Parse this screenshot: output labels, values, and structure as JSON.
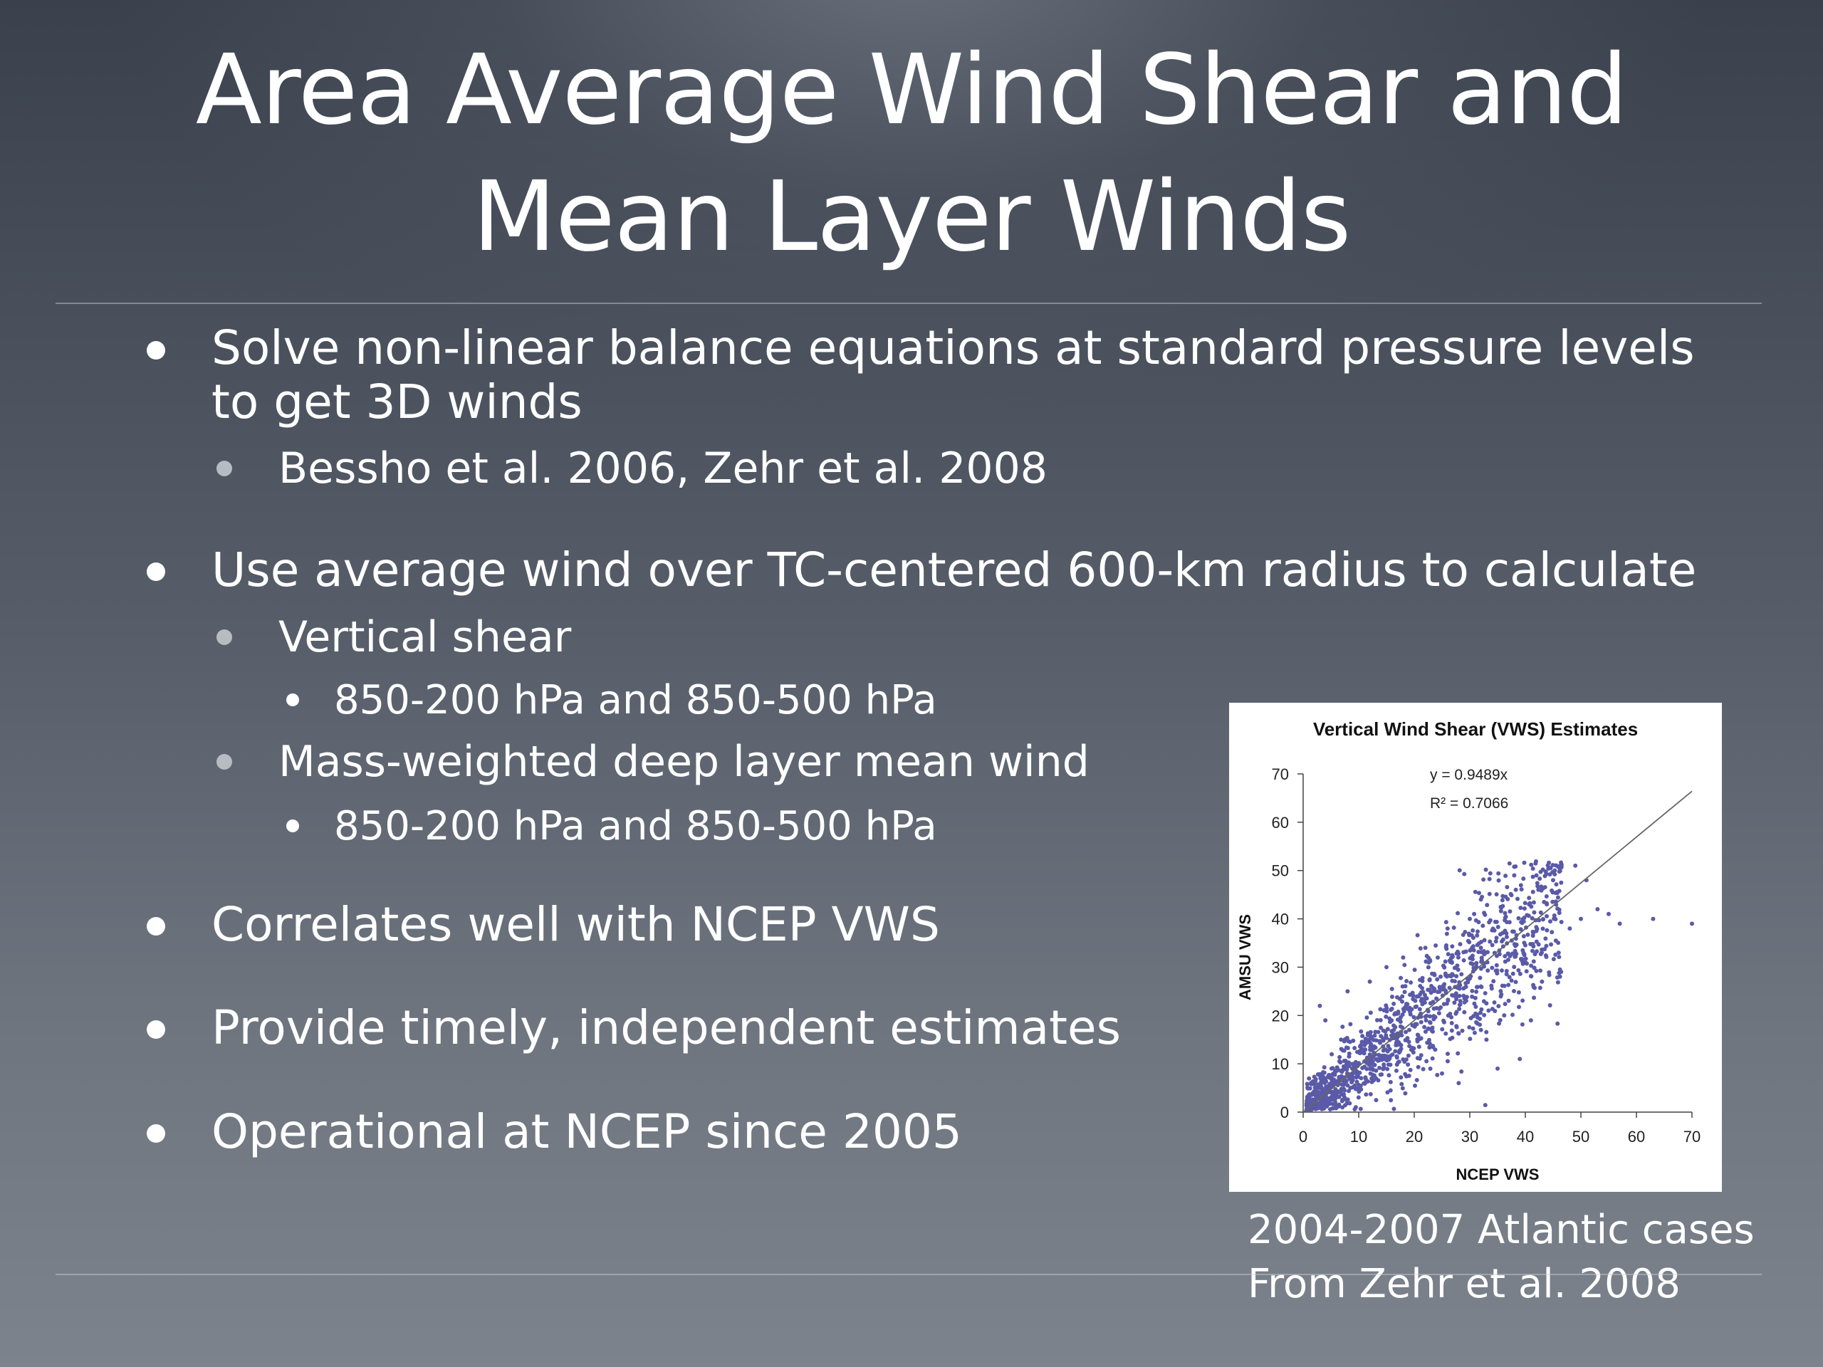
{
  "slide": {
    "title_line1": "Area Average Wind Shear and",
    "title_line2": "Mean Layer Winds",
    "bullets": [
      {
        "text": "Solve non-linear balance equations at standard pressure levels"
      },
      {
        "text": "to get 3D winds"
      },
      {
        "text": "Bessho et al. 2006, Zehr et al. 2008"
      },
      {
        "text": "Use average wind over TC-centered 600-km radius to calculate"
      },
      {
        "text": "Vertical shear"
      },
      {
        "text": "850-200 hPa and 850-500 hPa"
      },
      {
        "text": "Mass-weighted deep layer mean wind"
      },
      {
        "text": "850-200 hPa and 850-500 hPa"
      },
      {
        "text": "Correlates well with NCEP VWS"
      },
      {
        "text": "Provide timely, independent estimates"
      },
      {
        "text": "Operational at NCEP since 2005"
      }
    ],
    "caption_line1": "2004-2007 Atlantic cases",
    "caption_line2": "From Zehr et al. 2008",
    "colors": {
      "point_color": "#5a5aa8",
      "background_top": "#3a414d",
      "background_bottom": "#7d838c"
    }
  },
  "chart_data": {
    "type": "scatter",
    "title": "Vertical Wind Shear  (VWS) Estimates",
    "xlabel": "NCEP VWS",
    "ylabel": "AMSU VWS",
    "xlim": [
      0,
      70
    ],
    "ylim": [
      0,
      70
    ],
    "x_ticks": [
      "0",
      "10",
      "20",
      "30",
      "40",
      "50",
      "60",
      "70"
    ],
    "y_ticks": [
      "0",
      "10",
      "20",
      "30",
      "40",
      "50",
      "60",
      "70"
    ],
    "grid": false,
    "trendline": {
      "slope": 0.9489,
      "x_range": [
        0,
        70
      ]
    },
    "annotations": [
      "y = 0.9489x",
      "R² = 0.7066"
    ],
    "point_count_estimate": 1250,
    "outliers": [
      {
        "x": 38,
        "y": 49
      },
      {
        "x": 42,
        "y": 49
      },
      {
        "x": 45,
        "y": 48
      },
      {
        "x": 49,
        "y": 51
      },
      {
        "x": 51,
        "y": 48
      },
      {
        "x": 53,
        "y": 42
      },
      {
        "x": 55,
        "y": 41
      },
      {
        "x": 57,
        "y": 39
      },
      {
        "x": 63,
        "y": 40
      },
      {
        "x": 70,
        "y": 39
      },
      {
        "x": 50,
        "y": 40
      },
      {
        "x": 48,
        "y": 38
      },
      {
        "x": 46,
        "y": 33
      },
      {
        "x": 43,
        "y": 27
      },
      {
        "x": 41,
        "y": 19
      },
      {
        "x": 39,
        "y": 11
      },
      {
        "x": 35,
        "y": 9
      },
      {
        "x": 33,
        "y": 15
      },
      {
        "x": 28,
        "y": 6
      },
      {
        "x": 25,
        "y": 8
      },
      {
        "x": 4,
        "y": 19
      },
      {
        "x": 3,
        "y": 22
      },
      {
        "x": 8,
        "y": 25
      },
      {
        "x": 12,
        "y": 27
      },
      {
        "x": 15,
        "y": 30
      },
      {
        "x": 18,
        "y": 32
      },
      {
        "x": 22,
        "y": 34
      },
      {
        "x": 26,
        "y": 38
      },
      {
        "x": 30,
        "y": 40
      },
      {
        "x": 32,
        "y": 44
      }
    ]
  }
}
